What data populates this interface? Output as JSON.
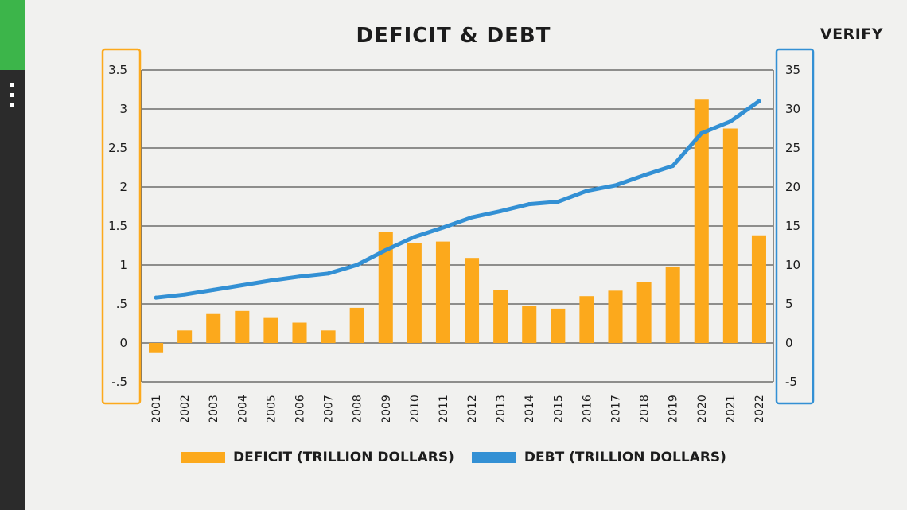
{
  "header": {
    "title": "DEFICIT & DEBT",
    "brand": "VERIFY"
  },
  "colors": {
    "deficit": "#fca91c",
    "debt": "#3390d4",
    "sidebar_accent": "#3cb54a"
  },
  "chart_data": {
    "type": "bar",
    "title": "DEFICIT & DEBT",
    "categories": [
      "2001",
      "2002",
      "2003",
      "2004",
      "2005",
      "2006",
      "2007",
      "2008",
      "2009",
      "2010",
      "2011",
      "2012",
      "2013",
      "2014",
      "2015",
      "2016",
      "2017",
      "2018",
      "2019",
      "2020",
      "2021",
      "2022"
    ],
    "series": [
      {
        "name": "DEFICIT (TRILLION DOLLARS)",
        "type": "bar",
        "axis": "left",
        "values": [
          -0.13,
          0.16,
          0.37,
          0.41,
          0.32,
          0.26,
          0.16,
          0.45,
          1.42,
          1.28,
          1.3,
          1.09,
          0.68,
          0.47,
          0.44,
          0.6,
          0.67,
          0.78,
          0.98,
          3.12,
          2.75,
          1.38
        ]
      },
      {
        "name": "DEBT (TRILLION DOLLARS)",
        "type": "line",
        "axis": "right",
        "values": [
          5.8,
          6.2,
          6.8,
          7.4,
          8.0,
          8.5,
          8.9,
          10.0,
          11.9,
          13.6,
          14.8,
          16.1,
          16.9,
          17.8,
          18.1,
          19.5,
          20.2,
          21.5,
          22.7,
          26.9,
          28.4,
          31.0
        ]
      }
    ],
    "y_left": {
      "range": [
        -0.5,
        3.5
      ],
      "ticks": [
        -0.5,
        0,
        0.5,
        1,
        1.5,
        2,
        2.5,
        3,
        3.5
      ],
      "tick_labels": [
        "-.5",
        "0",
        ".5",
        "1",
        "1.5",
        "2",
        "2.5",
        "3",
        "3.5"
      ]
    },
    "y_right": {
      "range": [
        -5,
        35
      ],
      "ticks": [
        -5,
        0,
        5,
        10,
        15,
        20,
        25,
        30,
        35
      ],
      "tick_labels": [
        "-5",
        "0",
        "5",
        "10",
        "15",
        "20",
        "25",
        "30",
        "35"
      ]
    },
    "grid": true,
    "legend_position": "bottom"
  }
}
